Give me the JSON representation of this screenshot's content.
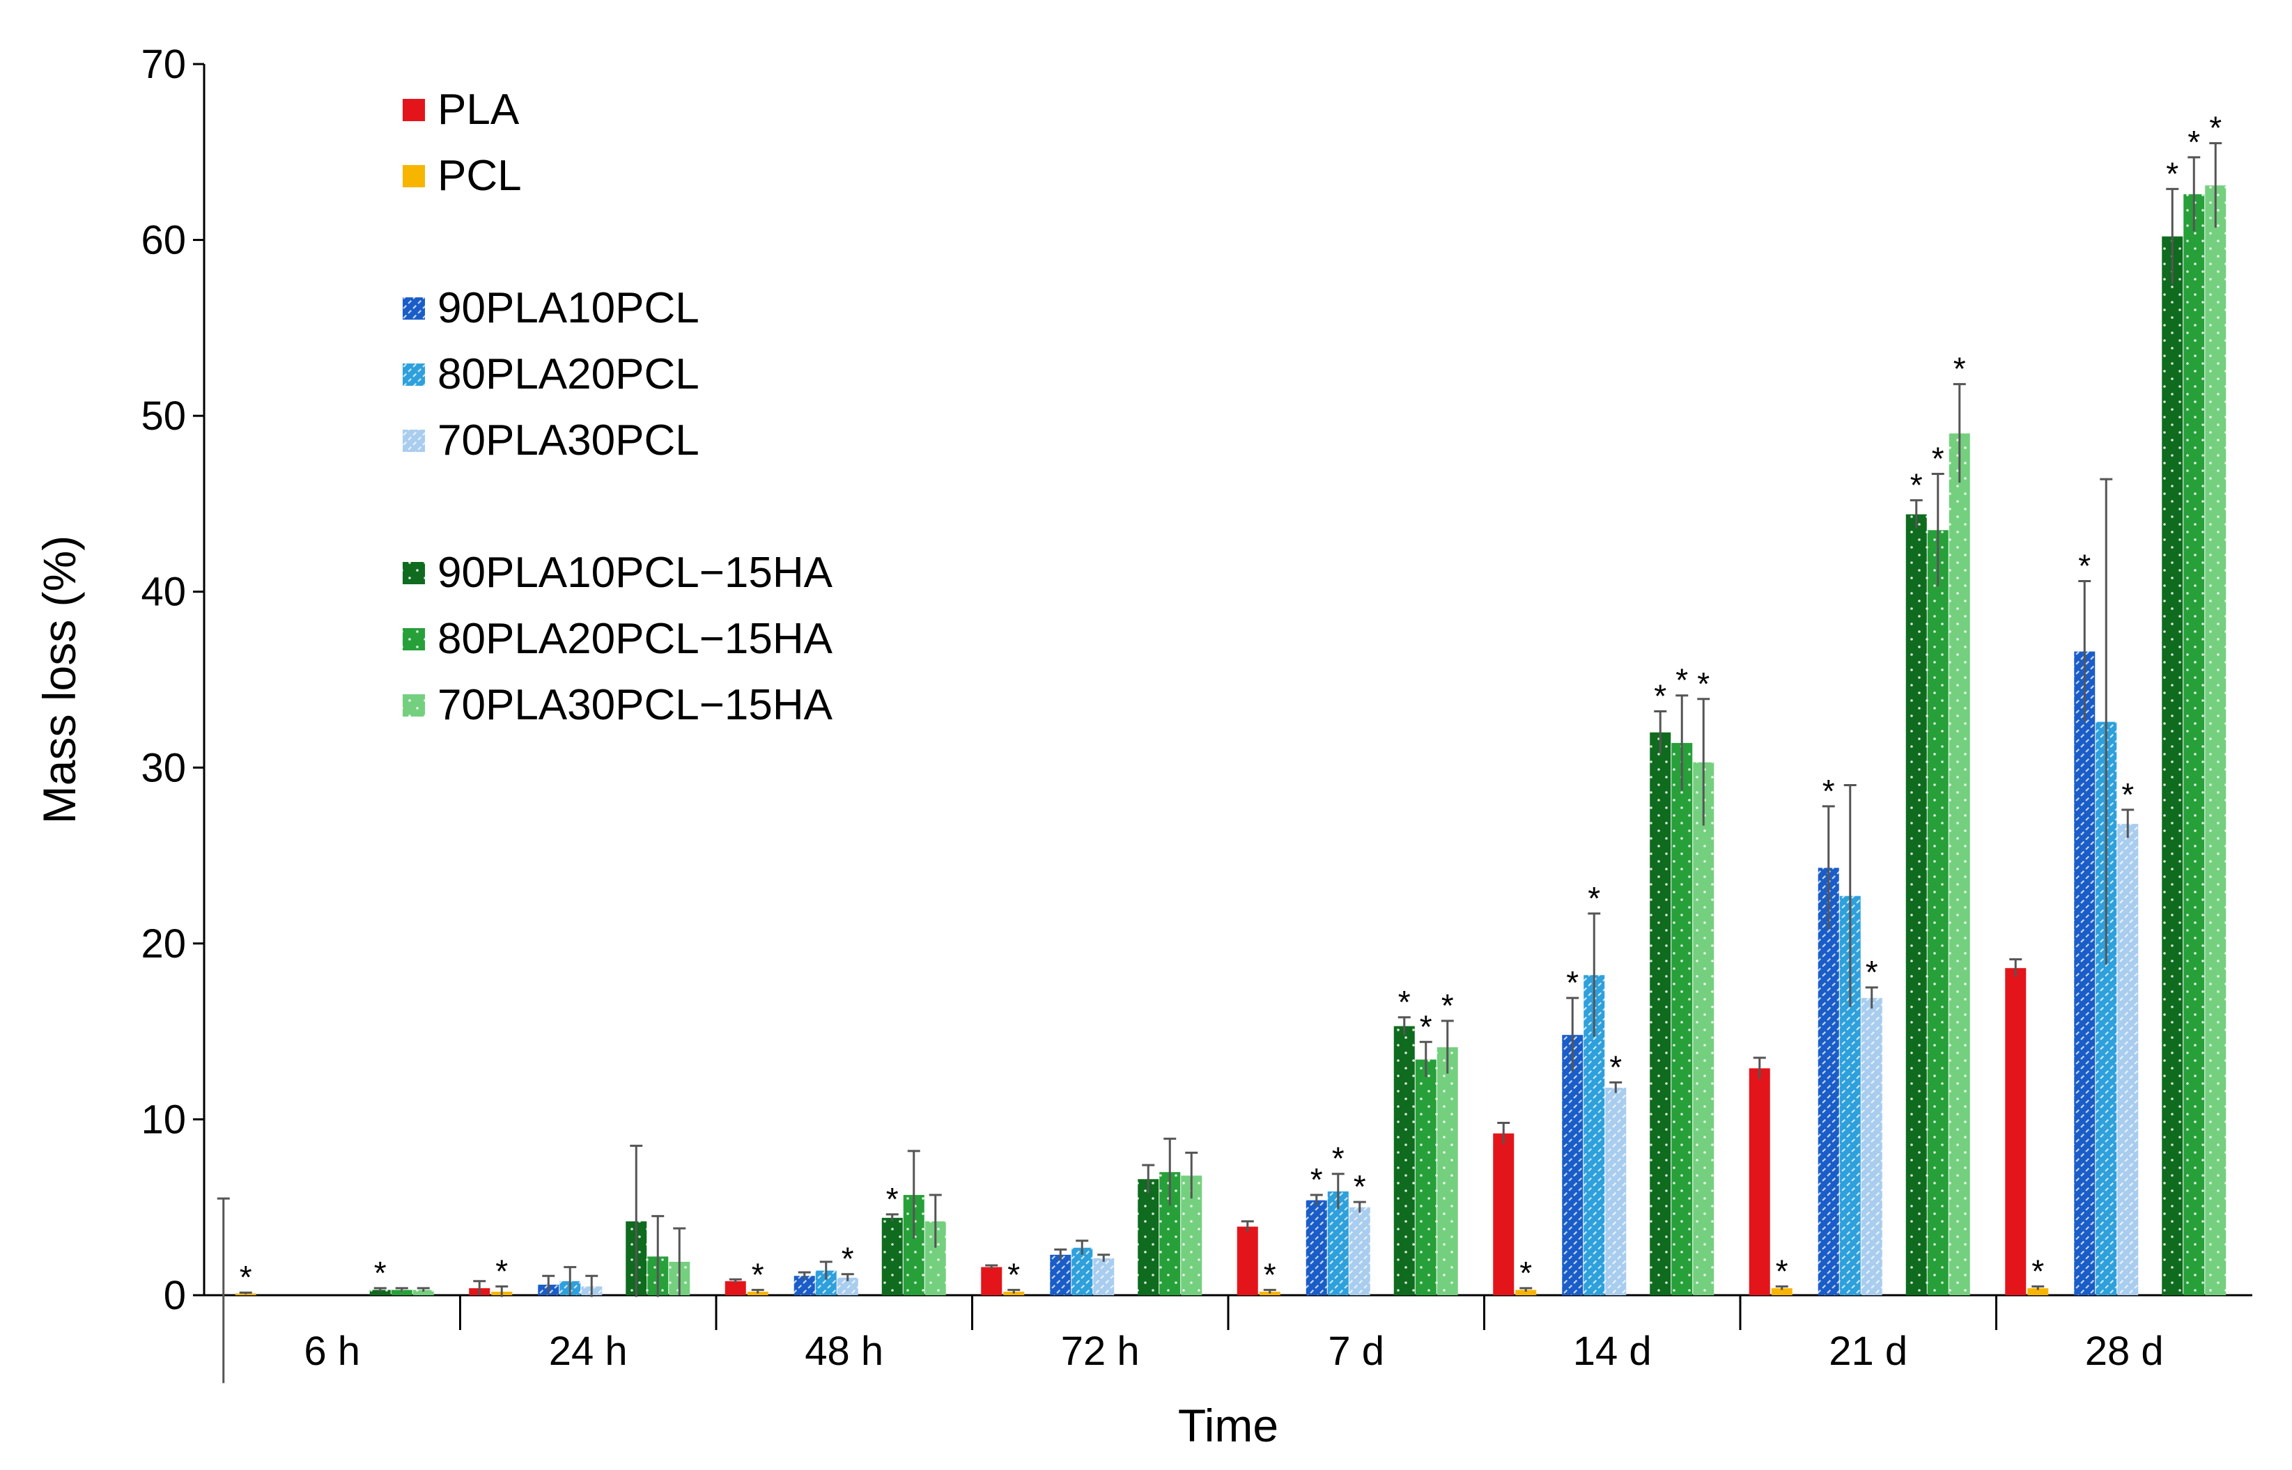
{
  "chart_data": {
    "type": "bar",
    "xlabel": "Time",
    "ylabel": "Mass loss (%)",
    "ylim": [
      0,
      70
    ],
    "yticks": [
      0,
      10,
      20,
      30,
      40,
      50,
      60,
      70
    ],
    "categories": [
      "6 h",
      "24 h",
      "48 h",
      "72 h",
      "7 d",
      "14 d",
      "21 d",
      "28 d"
    ],
    "series": [
      {
        "name": "PLA",
        "color": "#e3151a",
        "pattern": "solid",
        "values": [
          0,
          0.4,
          0.8,
          1.6,
          3.9,
          9.2,
          12.9,
          18.6
        ],
        "errors": [
          5.5,
          0.4,
          0.1,
          0.1,
          0.3,
          0.6,
          0.6,
          0.5
        ],
        "significant": [
          false,
          false,
          false,
          false,
          false,
          false,
          false,
          false
        ]
      },
      {
        "name": "PCL",
        "color": "#f7b500",
        "pattern": "solid",
        "values": [
          0.1,
          0.2,
          0.2,
          0.2,
          0.2,
          0.3,
          0.4,
          0.4
        ],
        "errors": [
          0.05,
          0.3,
          0.1,
          0.1,
          0.1,
          0.1,
          0.1,
          0.1
        ],
        "significant": [
          true,
          true,
          true,
          true,
          true,
          true,
          true,
          true
        ]
      },
      {
        "name": "90PLA10PCL",
        "color": "#1a5dc8",
        "pattern": "diag",
        "values": [
          0,
          0.6,
          1.1,
          2.3,
          5.4,
          14.8,
          24.3,
          36.6
        ],
        "errors": [
          0,
          0.5,
          0.2,
          0.3,
          0.3,
          2.1,
          3.5,
          4.0
        ],
        "significant": [
          false,
          false,
          false,
          false,
          true,
          true,
          true,
          true
        ]
      },
      {
        "name": "80PLA20PCL",
        "color": "#2ea0dc",
        "pattern": "diag",
        "values": [
          0,
          0.8,
          1.4,
          2.7,
          5.9,
          18.2,
          22.7,
          32.6
        ],
        "errors": [
          0,
          0.8,
          0.5,
          0.4,
          1.0,
          3.5,
          6.3,
          13.8
        ],
        "significant": [
          false,
          false,
          false,
          false,
          true,
          true,
          false,
          false
        ]
      },
      {
        "name": "70PLA30PCL",
        "color": "#a9cdee",
        "pattern": "diag",
        "values": [
          0,
          0.5,
          1.0,
          2.1,
          5.0,
          11.8,
          16.9,
          26.8
        ],
        "errors": [
          0,
          0.6,
          0.2,
          0.2,
          0.3,
          0.3,
          0.6,
          0.8
        ],
        "significant": [
          false,
          false,
          true,
          false,
          true,
          true,
          true,
          true
        ]
      },
      {
        "name": "90PLA10PCL−15HA",
        "color": "#0f6b1e",
        "pattern": "dots",
        "values": [
          0.3,
          4.2,
          4.4,
          6.6,
          15.3,
          32.0,
          44.4,
          60.2
        ],
        "errors": [
          0.1,
          4.3,
          0.2,
          0.8,
          0.5,
          1.2,
          0.8,
          2.7
        ],
        "significant": [
          true,
          false,
          true,
          false,
          true,
          true,
          true,
          true
        ]
      },
      {
        "name": "80PLA20PCL−15HA",
        "color": "#27a03a",
        "pattern": "dots",
        "values": [
          0.3,
          2.2,
          5.7,
          7.0,
          13.4,
          31.4,
          43.5,
          62.6
        ],
        "errors": [
          0.1,
          2.3,
          2.5,
          1.9,
          1.0,
          2.7,
          3.2,
          2.1
        ],
        "significant": [
          false,
          false,
          false,
          false,
          true,
          true,
          true,
          true
        ]
      },
      {
        "name": "70PLA30PCL−15HA",
        "color": "#74d07e",
        "pattern": "dots",
        "values": [
          0.3,
          1.9,
          4.2,
          6.8,
          14.1,
          30.3,
          49.0,
          63.1
        ],
        "errors": [
          0.1,
          1.9,
          1.5,
          1.3,
          1.5,
          3.6,
          2.8,
          2.4
        ],
        "significant": [
          false,
          false,
          false,
          false,
          true,
          true,
          true,
          true
        ]
      }
    ],
    "significance_marker": "*",
    "legend": {
      "placement": "top-left",
      "groups": [
        [
          0,
          1
        ],
        [
          2,
          3,
          4
        ],
        [
          5,
          6,
          7
        ]
      ]
    }
  }
}
